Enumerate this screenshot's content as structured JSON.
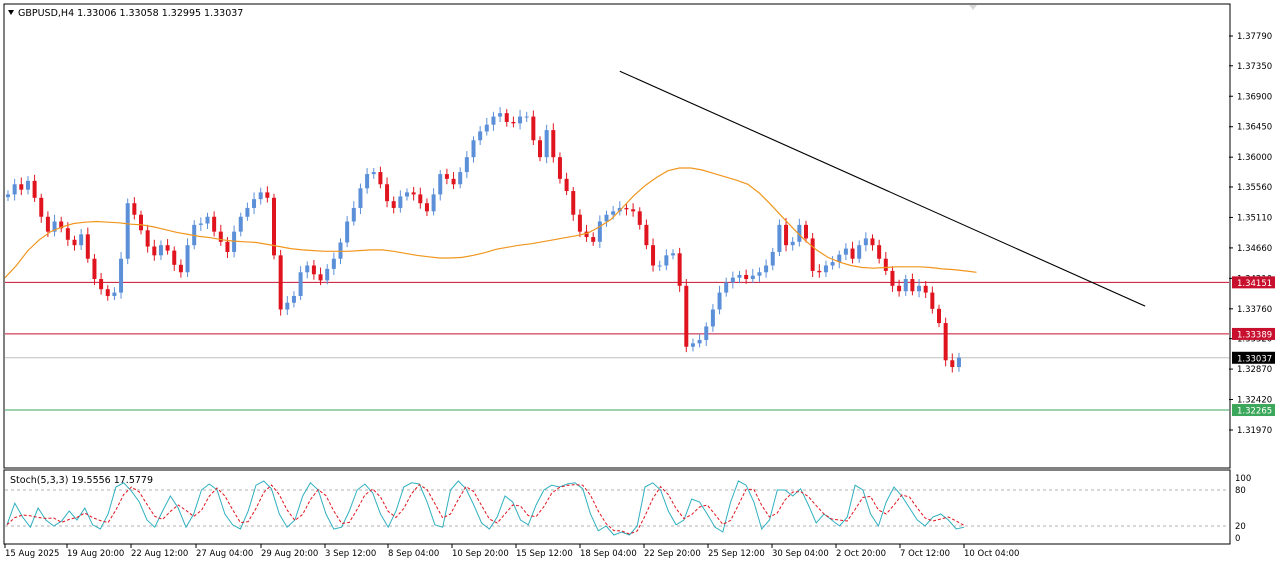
{
  "window": {
    "symbol_line": "GBPUSD,H4  1.33006 1.33058 1.32995 1.33037",
    "collapse_icon": "triangle-down-icon"
  },
  "colors": {
    "bull": "#5b8fd8",
    "bear": "#e0141e",
    "ma": "#f0961e",
    "trendline": "#000000",
    "resistance": "#c8102e",
    "support": "#3ba75a",
    "current": "#000000",
    "stoch_main": "#30b0c0",
    "stoch_signal": "#e0141e"
  },
  "chart_data": {
    "type": "candlestick",
    "symbol": "GBPUSD",
    "timeframe": "H4",
    "ohlc_header": {
      "open": 1.33006,
      "high": 1.33058,
      "low": 1.32995,
      "close": 1.33037
    },
    "ylim": [
      1.3175,
      1.383
    ],
    "y_ticks": [
      "1.37790",
      "1.37350",
      "1.36900",
      "1.36450",
      "1.36000",
      "1.35560",
      "1.35110",
      "1.34660",
      "1.34210",
      "1.33760",
      "1.33320",
      "1.32870",
      "1.32420",
      "1.31970"
    ],
    "x_ticks": [
      "15 Aug 2025",
      "19 Aug 20:00",
      "22 Aug 12:00",
      "27 Aug 04:00",
      "29 Aug 20:00",
      "3 Sep 12:00",
      "8 Sep 04:00",
      "10 Sep 20:00",
      "15 Sep 12:00",
      "18 Sep 04:00",
      "22 Sep 20:00",
      "25 Sep 12:00",
      "30 Sep 04:00",
      "2 Oct 20:00",
      "7 Oct 12:00",
      "10 Oct 04:00"
    ],
    "close_path": [
      1.3545,
      1.356,
      1.3552,
      1.3565,
      1.354,
      1.3512,
      1.349,
      1.3505,
      1.3495,
      1.3478,
      1.347,
      1.3486,
      1.345,
      1.342,
      1.3405,
      1.3395,
      1.34,
      1.345,
      1.3532,
      1.3515,
      1.3492,
      1.3468,
      1.3455,
      1.347,
      1.3462,
      1.3441,
      1.343,
      1.347,
      1.35,
      1.3502,
      1.3512,
      1.349,
      1.3475,
      1.346,
      1.349,
      1.3512,
      1.3525,
      1.3538,
      1.3548,
      1.354,
      1.3455,
      1.3375,
      1.3385,
      1.3395,
      1.343,
      1.344,
      1.3427,
      1.3418,
      1.3435,
      1.345,
      1.3474,
      1.3505,
      1.3525,
      1.3554,
      1.3575,
      1.3578,
      1.356,
      1.3535,
      1.3525,
      1.3542,
      1.3548,
      1.3545,
      1.3532,
      1.352,
      1.3545,
      1.3575,
      1.3568,
      1.356,
      1.3578,
      1.36,
      1.3625,
      1.3638,
      1.3648,
      1.366,
      1.3665,
      1.3652,
      1.365,
      1.366,
      1.366,
      1.3625,
      1.36,
      1.364,
      1.36,
      1.3568,
      1.355,
      1.3515,
      1.349,
      1.3482,
      1.3475,
      1.3505,
      1.3515,
      1.352,
      1.3525,
      1.3523,
      1.352,
      1.35,
      1.347,
      1.344,
      1.344,
      1.3455,
      1.3458,
      1.341,
      1.332,
      1.3325,
      1.333,
      1.335,
      1.3375,
      1.34,
      1.3415,
      1.3422,
      1.3426,
      1.342,
      1.3425,
      1.343,
      1.344,
      1.346,
      1.35,
      1.347,
      1.3475,
      1.35,
      1.348,
      1.3432,
      1.343,
      1.344,
      1.3445,
      1.3456,
      1.3465,
      1.345,
      1.347,
      1.348,
      1.347,
      1.345,
      1.3432,
      1.341,
      1.3402,
      1.342,
      1.3402,
      1.341,
      1.34,
      1.3376,
      1.3355,
      1.33,
      1.329,
      1.3304
    ],
    "ma_path": [
      1.3422,
      1.344,
      1.3462,
      1.3478,
      1.349,
      1.3497,
      1.3502,
      1.3504,
      1.3505,
      1.3504,
      1.3503,
      1.3501,
      1.35,
      1.3497,
      1.3493,
      1.3489,
      1.3486,
      1.3483,
      1.3481,
      1.3478,
      1.3476,
      1.3475,
      1.3474,
      1.3471,
      1.3468,
      1.3465,
      1.3463,
      1.3462,
      1.3461,
      1.3461,
      1.3461,
      1.3462,
      1.3463,
      1.3463,
      1.3461,
      1.3458,
      1.3455,
      1.3453,
      1.3451,
      1.3451,
      1.3452,
      1.3455,
      1.3459,
      1.3464,
      1.3467,
      1.347,
      1.3472,
      1.3475,
      1.3478,
      1.3481,
      1.3484,
      1.3488,
      1.3497,
      1.3508,
      1.3525,
      1.3543,
      1.3558,
      1.357,
      1.358,
      1.3584,
      1.3584,
      1.3581,
      1.3576,
      1.3571,
      1.3566,
      1.356,
      1.3547,
      1.353,
      1.3512,
      1.3494,
      1.3477,
      1.3463,
      1.3452,
      1.3445,
      1.344,
      1.3437,
      1.3436,
      1.3437,
      1.3438,
      1.3438,
      1.3438,
      1.3437,
      1.3435,
      1.3434,
      1.3432,
      1.343
    ],
    "ma_x_start": 5,
    "ma_x_step": 11.43,
    "trendline": [
      {
        "x_index": 92,
        "price": 1.3727
      },
      {
        "x_index": 171,
        "price": 1.338
      }
    ],
    "h_lines": [
      {
        "label": "1.34151",
        "price": 1.34151,
        "kind": "resistance"
      },
      {
        "label": "1.33389",
        "price": 1.33389,
        "kind": "resistance"
      },
      {
        "label": "1.33037",
        "price": 1.33037,
        "kind": "current"
      },
      {
        "label": "1.32265",
        "price": 1.32265,
        "kind": "support"
      }
    ],
    "stochastic": {
      "title": "Stoch(5,3,3) 19.5556 17.5779",
      "main": 19.5556,
      "signal": 17.5779,
      "levels": [
        80,
        20
      ],
      "axis_labels": [
        "100",
        "80",
        "20",
        "0"
      ],
      "k_path": [
        22,
        58,
        35,
        18,
        50,
        30,
        20,
        28,
        45,
        30,
        50,
        22,
        15,
        40,
        85,
        92,
        78,
        60,
        30,
        18,
        45,
        70,
        50,
        18,
        40,
        80,
        90,
        80,
        40,
        22,
        15,
        45,
        88,
        95,
        82,
        40,
        18,
        30,
        70,
        92,
        80,
        40,
        15,
        18,
        45,
        80,
        90,
        75,
        40,
        18,
        45,
        85,
        92,
        90,
        60,
        22,
        18,
        80,
        95,
        82,
        55,
        25,
        15,
        35,
        70,
        60,
        30,
        22,
        55,
        80,
        88,
        85,
        90,
        92,
        82,
        40,
        12,
        20,
        5,
        10,
        5,
        20,
        85,
        92,
        80,
        45,
        22,
        30,
        65,
        60,
        40,
        18,
        10,
        60,
        95,
        88,
        60,
        15,
        30,
        80,
        80,
        70,
        82,
        55,
        25,
        40,
        30,
        20,
        35,
        88,
        80,
        40,
        20,
        60,
        85,
        70,
        50,
        30,
        20,
        35,
        40,
        30,
        15,
        18
      ]
    }
  }
}
